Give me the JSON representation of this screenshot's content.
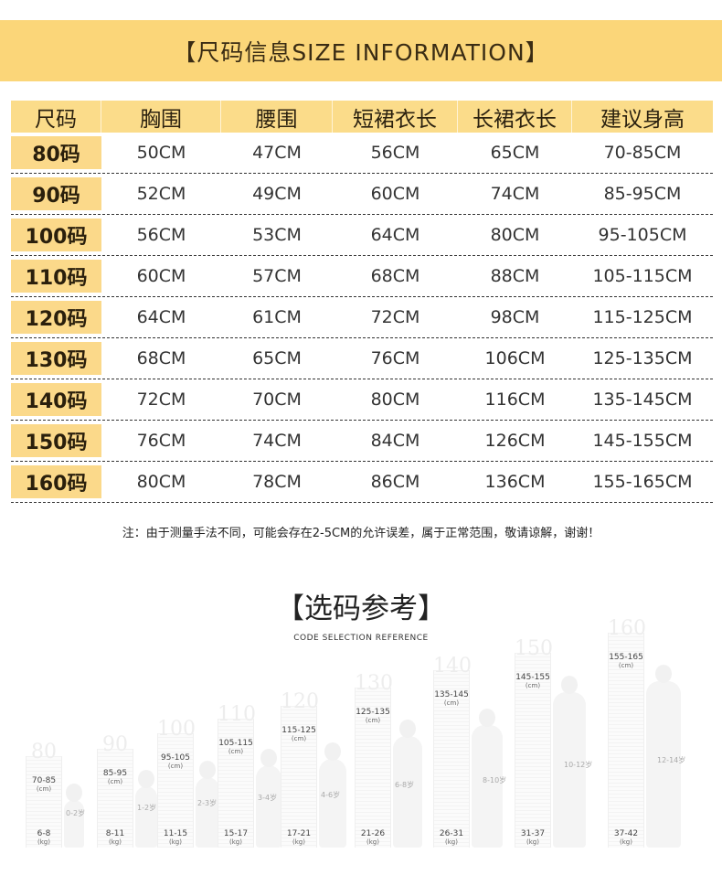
{
  "banner": {
    "title": "【尺码信息SIZE INFORMATION】"
  },
  "table": {
    "headers": [
      "尺码",
      "胸围",
      "腰围",
      "短裙衣长",
      "长裙衣长",
      "建议身高"
    ],
    "rows": [
      {
        "size": "80码",
        "chest": "50CM",
        "waist": "47CM",
        "short_length": "56CM",
        "long_length": "65CM",
        "height": "70-85CM"
      },
      {
        "size": "90码",
        "chest": "52CM",
        "waist": "49CM",
        "short_length": "60CM",
        "long_length": "74CM",
        "height": "85-95CM"
      },
      {
        "size": "100码",
        "chest": "56CM",
        "waist": "53CM",
        "short_length": "64CM",
        "long_length": "80CM",
        "height": "95-105CM"
      },
      {
        "size": "110码",
        "chest": "60CM",
        "waist": "57CM",
        "short_length": "68CM",
        "long_length": "88CM",
        "height": "105-115CM"
      },
      {
        "size": "120码",
        "chest": "64CM",
        "waist": "61CM",
        "short_length": "72CM",
        "long_length": "98CM",
        "height": "115-125CM"
      },
      {
        "size": "130码",
        "chest": "68CM",
        "waist": "65CM",
        "short_length": "76CM",
        "long_length": "106CM",
        "height": "125-135CM"
      },
      {
        "size": "140码",
        "chest": "72CM",
        "waist": "70CM",
        "short_length": "80CM",
        "long_length": "116CM",
        "height": "135-145CM"
      },
      {
        "size": "150码",
        "chest": "76CM",
        "waist": "74CM",
        "short_length": "84CM",
        "long_length": "126CM",
        "height": "145-155CM"
      },
      {
        "size": "160码",
        "chest": "80CM",
        "waist": "78CM",
        "short_length": "86CM",
        "long_length": "136CM",
        "height": "155-165CM"
      }
    ]
  },
  "note": "注：由于测量手法不同，可能会存在2-5CM的允许误差，属于正常范围，敬请谅解，谢谢！",
  "reference": {
    "title": "【选码参考】",
    "subtitle": "CODE SELECTION REFERENCE",
    "figures": [
      {
        "ruler_top": "80",
        "height": "70-85",
        "height_unit": "(cm)",
        "weight": "6-8",
        "weight_unit": "(kg)",
        "age": "0-2岁"
      },
      {
        "ruler_top": "90",
        "height": "85-95",
        "height_unit": "(cm)",
        "weight": "8-11",
        "weight_unit": "(kg)",
        "age": "1-2岁"
      },
      {
        "ruler_top": "100",
        "height": "95-105",
        "height_unit": "(cm)",
        "weight": "11-15",
        "weight_unit": "(kg)",
        "age": "2-3岁"
      },
      {
        "ruler_top": "110",
        "height": "105-115",
        "height_unit": "(cm)",
        "weight": "15-17",
        "weight_unit": "(kg)",
        "age": "3-4岁"
      },
      {
        "ruler_top": "120",
        "height": "115-125",
        "height_unit": "(cm)",
        "weight": "17-21",
        "weight_unit": "(kg)",
        "age": "4-6岁"
      },
      {
        "ruler_top": "130",
        "height": "125-135",
        "height_unit": "(cm)",
        "weight": "21-26",
        "weight_unit": "(kg)",
        "age": "6-8岁"
      },
      {
        "ruler_top": "140",
        "height": "135-145",
        "height_unit": "(cm)",
        "weight": "26-31",
        "weight_unit": "(kg)",
        "age": "8-10岁"
      },
      {
        "ruler_top": "150",
        "height": "145-155",
        "height_unit": "(cm)",
        "weight": "31-37",
        "weight_unit": "(kg)",
        "age": "10-12岁"
      },
      {
        "ruler_top": "160",
        "height": "155-165",
        "height_unit": "(cm)",
        "weight": "37-42",
        "weight_unit": "(kg)",
        "age": "12-14岁"
      }
    ]
  },
  "colors": {
    "banner": "#fbd679",
    "header_row": "#fbdc8a",
    "size_cell": "#fbd98a",
    "text_dark": "#2a1f0c"
  }
}
